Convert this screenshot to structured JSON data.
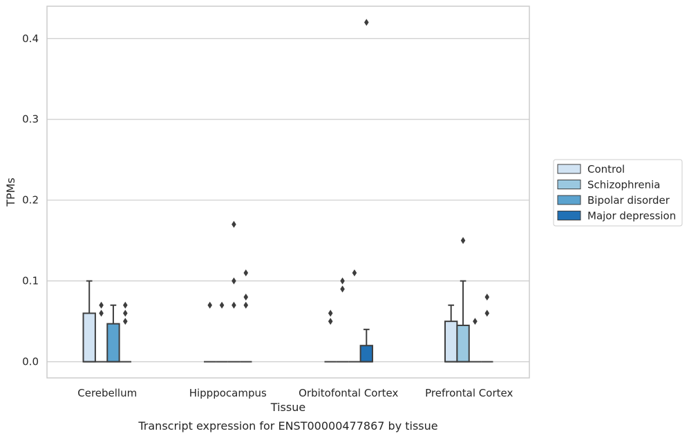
{
  "chart_data": {
    "type": "box",
    "title": "",
    "caption": "Transcript expression for ENST00000477867 by tissue",
    "xlabel": "Tissue",
    "ylabel": "TPMs",
    "ylim": [
      -0.02,
      0.44
    ],
    "yticks": [
      "0.0",
      "0.1",
      "0.2",
      "0.3",
      "0.4"
    ],
    "ytick_values": [
      0.0,
      0.1,
      0.2,
      0.3,
      0.4
    ],
    "grid": "horizontal",
    "legend_position": "right",
    "categories": [
      "Cerebellum",
      "Hipppocampus",
      "Orbitofontal Cortex",
      "Prefrontal Cortex"
    ],
    "series": [
      {
        "name": "Control",
        "color": "#d1e3f3",
        "boxes": [
          {
            "q1": 0.0,
            "median": 0.0,
            "q3": 0.06,
            "whislo": 0.0,
            "whishi": 0.1,
            "fliers": []
          },
          {
            "q1": 0.0,
            "median": 0.0,
            "q3": 0.0,
            "whislo": 0.0,
            "whishi": 0.0,
            "fliers": [
              0.07
            ]
          },
          {
            "q1": 0.0,
            "median": 0.0,
            "q3": 0.0,
            "whislo": 0.0,
            "whishi": 0.0,
            "fliers": [
              0.05,
              0.06
            ]
          },
          {
            "q1": 0.0,
            "median": 0.0,
            "q3": 0.05,
            "whislo": 0.0,
            "whishi": 0.07,
            "fliers": []
          }
        ]
      },
      {
        "name": "Schizophrenia",
        "color": "#9ac8e0",
        "boxes": [
          {
            "q1": 0.0,
            "median": 0.0,
            "q3": 0.0,
            "whislo": 0.0,
            "whishi": 0.0,
            "fliers": [
              0.06,
              0.07
            ]
          },
          {
            "q1": 0.0,
            "median": 0.0,
            "q3": 0.0,
            "whislo": 0.0,
            "whishi": 0.0,
            "fliers": [
              0.07
            ]
          },
          {
            "q1": 0.0,
            "median": 0.0,
            "q3": 0.0,
            "whislo": 0.0,
            "whishi": 0.0,
            "fliers": [
              0.09,
              0.1
            ]
          },
          {
            "q1": 0.0,
            "median": 0.0,
            "q3": 0.045,
            "whislo": 0.0,
            "whishi": 0.1,
            "fliers": [
              0.15
            ]
          }
        ]
      },
      {
        "name": "Bipolar disorder",
        "color": "#5ba3cf",
        "boxes": [
          {
            "q1": 0.0,
            "median": 0.0,
            "q3": 0.047,
            "whislo": 0.0,
            "whishi": 0.07,
            "fliers": []
          },
          {
            "q1": 0.0,
            "median": 0.0,
            "q3": 0.0,
            "whislo": 0.0,
            "whishi": 0.0,
            "fliers": [
              0.07,
              0.1,
              0.17
            ]
          },
          {
            "q1": 0.0,
            "median": 0.0,
            "q3": 0.0,
            "whislo": 0.0,
            "whishi": 0.0,
            "fliers": [
              0.11
            ]
          },
          {
            "q1": 0.0,
            "median": 0.0,
            "q3": 0.0,
            "whislo": 0.0,
            "whishi": 0.0,
            "fliers": [
              0.05
            ]
          }
        ]
      },
      {
        "name": "Major depression",
        "color": "#2171b5",
        "boxes": [
          {
            "q1": 0.0,
            "median": 0.0,
            "q3": 0.0,
            "whislo": 0.0,
            "whishi": 0.0,
            "fliers": [
              0.05,
              0.06,
              0.07
            ]
          },
          {
            "q1": 0.0,
            "median": 0.0,
            "q3": 0.0,
            "whislo": 0.0,
            "whishi": 0.0,
            "fliers": [
              0.07,
              0.08,
              0.11
            ]
          },
          {
            "q1": 0.0,
            "median": 0.0,
            "q3": 0.02,
            "whislo": 0.0,
            "whishi": 0.04,
            "fliers": [
              0.42
            ]
          },
          {
            "q1": 0.0,
            "median": 0.0,
            "q3": 0.0,
            "whislo": 0.0,
            "whishi": 0.0,
            "fliers": [
              0.06,
              0.08
            ]
          }
        ]
      }
    ],
    "colors": {
      "grid": "#cccccc",
      "frame": "#cccccc",
      "edge": "#3d3d3d"
    }
  }
}
